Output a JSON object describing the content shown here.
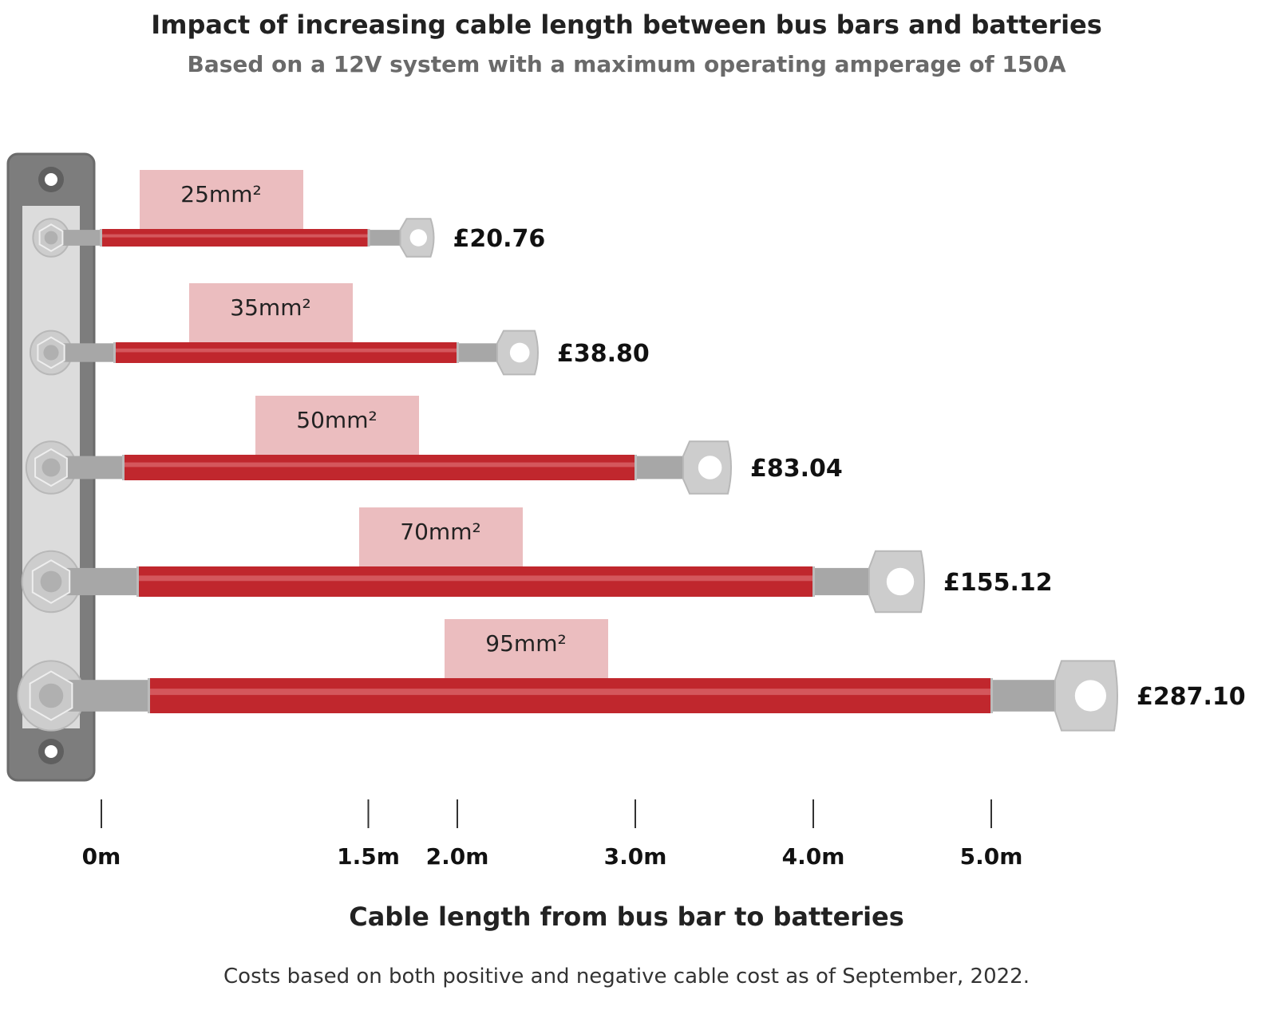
{
  "chart_data": {
    "type": "bar",
    "title": "Impact of increasing cable length between bus bars and batteries",
    "subtitle": "Based on a 12V system with a maximum operating amperage of 150A",
    "xlabel": "Cable length from bus bar to batteries",
    "footnote": "Costs based on both positive and negative cable cost as of September, 2022.",
    "orientation": "horizontal",
    "xlim": [
      0,
      5.0
    ],
    "x_ticks": [
      {
        "value": 0,
        "label": "0m"
      },
      {
        "value": 1.5,
        "label": "1.5m"
      },
      {
        "value": 2.0,
        "label": "2.0m"
      },
      {
        "value": 3.0,
        "label": "3.0m"
      },
      {
        "value": 4.0,
        "label": "4.0m"
      },
      {
        "value": 5.0,
        "label": "5.0m"
      }
    ],
    "categories": [
      "25mm²",
      "35mm²",
      "50mm²",
      "70mm²",
      "95mm²"
    ],
    "lengths_m": [
      1.5,
      2.0,
      3.0,
      4.0,
      5.0
    ],
    "costs": [
      "£20.76",
      "£38.80",
      "£83.04",
      "£155.12",
      "£287.10"
    ],
    "colors": {
      "cable": "#c0272d",
      "cable_highlight": "#d4575c",
      "label_box": "#ebbdbf",
      "terminal": "#a7a7a7",
      "lug": "#cdcdcd",
      "bus_bar": "#7d7d7d",
      "bus_plate": "#dcdcdc"
    }
  }
}
